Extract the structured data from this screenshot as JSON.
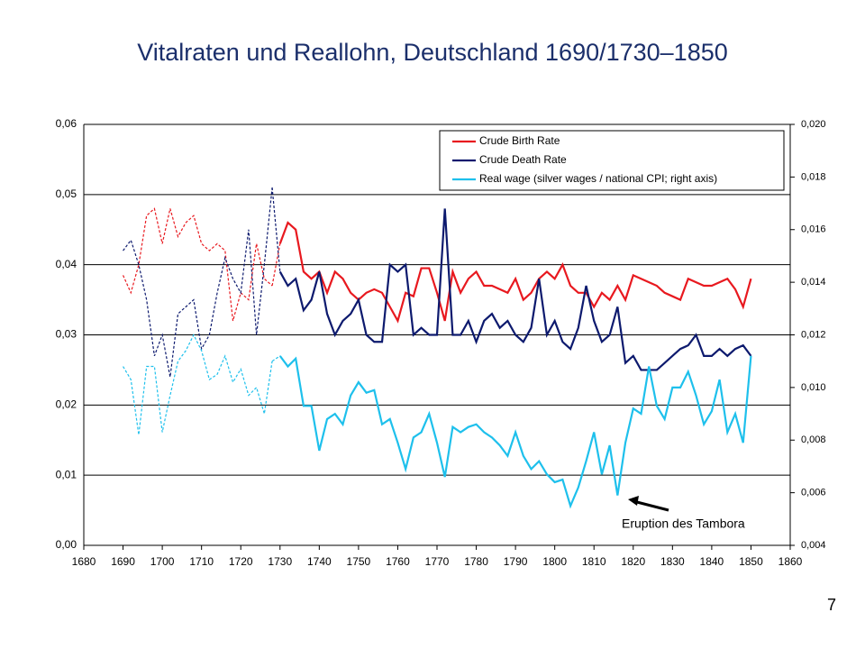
{
  "chart_data": {
    "type": "line",
    "title": "Vitalraten und Reallohn, Deutschland 1690/1730–1850",
    "annotation": "Eruption des Tambora",
    "page_number": "7",
    "dashed_until": 1730,
    "x": [
      1690,
      1692,
      1694,
      1696,
      1698,
      1700,
      1702,
      1704,
      1706,
      1708,
      1710,
      1712,
      1714,
      1716,
      1718,
      1720,
      1722,
      1724,
      1726,
      1728,
      1730,
      1732,
      1734,
      1736,
      1738,
      1740,
      1742,
      1744,
      1746,
      1748,
      1750,
      1752,
      1754,
      1756,
      1758,
      1760,
      1762,
      1764,
      1766,
      1768,
      1770,
      1772,
      1774,
      1776,
      1778,
      1780,
      1782,
      1784,
      1786,
      1788,
      1790,
      1792,
      1794,
      1796,
      1798,
      1800,
      1802,
      1804,
      1806,
      1808,
      1810,
      1812,
      1814,
      1816,
      1818,
      1820,
      1822,
      1824,
      1826,
      1828,
      1830,
      1832,
      1834,
      1836,
      1838,
      1840,
      1842,
      1844,
      1846,
      1848,
      1850
    ],
    "series": [
      {
        "name": "Crude Birth Rate",
        "color": "#e8191f",
        "values": [
          0.0385,
          0.036,
          0.04,
          0.047,
          0.048,
          0.043,
          0.048,
          0.044,
          0.046,
          0.047,
          0.043,
          0.042,
          0.043,
          0.042,
          0.032,
          0.036,
          0.035,
          0.043,
          0.038,
          0.037,
          0.043,
          0.046,
          0.045,
          0.039,
          0.038,
          0.039,
          0.036,
          0.039,
          0.038,
          0.036,
          0.035,
          0.036,
          0.0365,
          0.036,
          0.034,
          0.032,
          0.036,
          0.0355,
          0.0395,
          0.0395,
          0.036,
          0.032,
          0.039,
          0.036,
          0.038,
          0.039,
          0.037,
          0.037,
          0.0365,
          0.036,
          0.038,
          0.035,
          0.036,
          0.038,
          0.039,
          0.038,
          0.04,
          0.037,
          0.036,
          0.036,
          0.034,
          0.036,
          0.035,
          0.037,
          0.035,
          0.0385,
          0.038,
          0.0375,
          0.037,
          0.036,
          0.0355,
          0.035,
          0.038,
          0.0375,
          0.037,
          0.037,
          0.0375,
          0.038,
          0.0365,
          0.034,
          0.038
        ]
      },
      {
        "name": "Crude Death Rate",
        "color": "#0d1a6e",
        "values": [
          0.042,
          0.0435,
          0.04,
          0.035,
          0.027,
          0.03,
          0.024,
          0.033,
          0.034,
          0.035,
          0.028,
          0.03,
          0.036,
          0.041,
          0.038,
          0.036,
          0.045,
          0.03,
          0.04,
          0.051,
          0.039,
          0.037,
          0.038,
          0.0335,
          0.035,
          0.039,
          0.033,
          0.03,
          0.032,
          0.033,
          0.035,
          0.03,
          0.029,
          0.029,
          0.04,
          0.039,
          0.04,
          0.03,
          0.031,
          0.03,
          0.03,
          0.048,
          0.03,
          0.03,
          0.032,
          0.029,
          0.032,
          0.033,
          0.031,
          0.032,
          0.03,
          0.029,
          0.031,
          0.038,
          0.03,
          0.032,
          0.029,
          0.028,
          0.031,
          0.037,
          0.032,
          0.029,
          0.03,
          0.034,
          0.026,
          0.027,
          0.025,
          0.025,
          0.025,
          0.026,
          0.027,
          0.028,
          0.0285,
          0.03,
          0.027,
          0.027,
          0.028,
          0.027,
          0.028,
          0.0285,
          0.027
        ]
      },
      {
        "name": "Real wage (silver wages / national CPI; right axis)",
        "color": "#1ec0ec",
        "axis": "y2",
        "values": [
          0.0108,
          0.0103,
          0.0082,
          0.0108,
          0.0108,
          0.0083,
          0.0097,
          0.011,
          0.0114,
          0.012,
          0.0114,
          0.0103,
          0.0105,
          0.0112,
          0.0102,
          0.0107,
          0.0097,
          0.01,
          0.009,
          0.011,
          0.0112,
          0.0108,
          0.0111,
          0.0093,
          0.0093,
          0.0076,
          0.0088,
          0.009,
          0.0086,
          0.0097,
          0.0102,
          0.0098,
          0.0099,
          0.0086,
          0.0088,
          0.0079,
          0.0069,
          0.0081,
          0.0083,
          0.009,
          0.0079,
          0.0066,
          0.0085,
          0.0083,
          0.0085,
          0.0086,
          0.0083,
          0.0081,
          0.0078,
          0.0074,
          0.0083,
          0.0074,
          0.0069,
          0.0072,
          0.0067,
          0.0064,
          0.0065,
          0.0055,
          0.0062,
          0.0072,
          0.0083,
          0.0067,
          0.0078,
          0.0059,
          0.0079,
          0.0092,
          0.009,
          0.0108,
          0.0093,
          0.0088,
          0.01,
          0.01,
          0.0106,
          0.0097,
          0.0086,
          0.0091,
          0.0103,
          0.0083,
          0.009,
          0.0079,
          0.0112
        ]
      }
    ],
    "xlim": [
      1680,
      1860
    ],
    "xticks": [
      1680,
      1690,
      1700,
      1710,
      1720,
      1730,
      1740,
      1750,
      1760,
      1770,
      1780,
      1790,
      1800,
      1810,
      1820,
      1830,
      1840,
      1850,
      1860
    ],
    "ylim": [
      0,
      0.06
    ],
    "yticks": [
      {
        "value": 0,
        "label": "0,00"
      },
      {
        "value": 0.01,
        "label": "0,01"
      },
      {
        "value": 0.02,
        "label": "0,02"
      },
      {
        "value": 0.03,
        "label": "0,03"
      },
      {
        "value": 0.04,
        "label": "0,04"
      },
      {
        "value": 0.05,
        "label": "0,05"
      },
      {
        "value": 0.06,
        "label": "0,06"
      }
    ],
    "y2lim": [
      0.004,
      0.02
    ],
    "y2ticks": [
      {
        "value": 0.004,
        "label": "0,004"
      },
      {
        "value": 0.006,
        "label": "0,006"
      },
      {
        "value": 0.008,
        "label": "0,008"
      },
      {
        "value": 0.01,
        "label": "0,010"
      },
      {
        "value": 0.012,
        "label": "0,012"
      },
      {
        "value": 0.014,
        "label": "0,014"
      },
      {
        "value": 0.016,
        "label": "0,016"
      },
      {
        "value": 0.018,
        "label": "0,018"
      },
      {
        "value": 0.02,
        "label": "0,020"
      }
    ],
    "grid": true,
    "legend": "top-right"
  }
}
